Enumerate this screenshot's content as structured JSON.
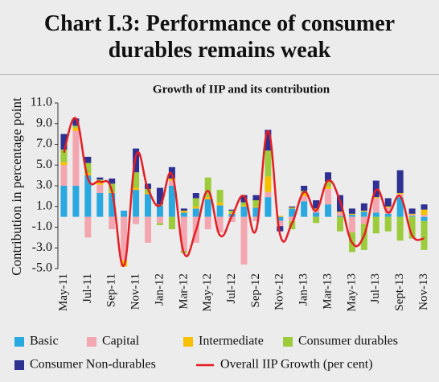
{
  "chart_data": {
    "type": "stacked-bar-line",
    "title": "Chart I.3: Performance of consumer durables remains weak",
    "subtitle": "Growth of IIP and its contribution",
    "y_label": "Contribution in percentage point",
    "categories": [
      "May-11",
      null,
      "Jul-11",
      null,
      "Sep-11",
      null,
      "Nov-11",
      null,
      "Jan-12",
      null,
      "Mar-12",
      null,
      "May-12",
      null,
      "Jul-12",
      null,
      "Sep-12",
      null,
      "Nov-12",
      null,
      "Jan-13",
      null,
      "Mar-13",
      null,
      "May-13",
      null,
      "Jul-13",
      null,
      "Sept-13",
      null,
      "Nov-13"
    ],
    "ylim": [
      -5,
      11
    ],
    "yticks": [
      {
        "value": -5,
        "label": "-5.0"
      },
      {
        "value": -3,
        "label": "-3.0"
      },
      {
        "value": -1,
        "label": "-1.0"
      },
      {
        "value": 1,
        "label": "1.0"
      },
      {
        "value": 3,
        "label": "3.0"
      },
      {
        "value": 5,
        "label": "5.0"
      },
      {
        "value": 7,
        "label": "7.0"
      },
      {
        "value": 9,
        "label": "9.0"
      },
      {
        "value": 11,
        "label": "11.0"
      }
    ],
    "grid": false,
    "series": [
      {
        "name": "Basic",
        "color": "#29a9e0",
        "type": "bar",
        "values": [
          3.0,
          3.0,
          4.0,
          2.3,
          2.3,
          0.6,
          2.6,
          2.2,
          1.1,
          3.0,
          0.4,
          0.8,
          1.7,
          1.1,
          0.3,
          1.0,
          0.9,
          1.9,
          -0.4,
          0.8,
          1.5,
          0.4,
          1.2,
          0.1,
          0.2,
          0.5,
          0.4,
          0.3,
          1.9,
          0.1,
          -0.4
        ]
      },
      {
        "name": "Capital",
        "color": "#f4a6b0",
        "type": "bar",
        "values": [
          2.0,
          5.3,
          -2.0,
          0.8,
          -1.2,
          -4.2,
          -0.7,
          -2.5,
          -0.6,
          0.5,
          -3.3,
          -2.5,
          -1.2,
          -1.5,
          -0.5,
          -4.6,
          -0.4,
          0.5,
          -0.5,
          -0.4,
          0.5,
          0.3,
          1.5,
          0.3,
          -1.5,
          -0.7,
          1.4,
          0.6,
          0.3,
          0.1,
          0.2
        ]
      },
      {
        "name": "Intermediate",
        "color": "#f6c000",
        "type": "bar",
        "values": [
          0.3,
          0.3,
          0.2,
          0.2,
          0.1,
          -0.6,
          0.2,
          0.1,
          0.1,
          0.2,
          0.2,
          0.2,
          0.2,
          0.3,
          0.1,
          0.1,
          0.1,
          1.5,
          0.1,
          0.1,
          0.3,
          0.1,
          0.2,
          0.1,
          0.1,
          0.1,
          0.1,
          0.1,
          0.1,
          0.1,
          0.5
        ]
      },
      {
        "name": "Consumer durables",
        "color": "#9ccb3b",
        "type": "bar",
        "values": [
          1.2,
          0.2,
          1.0,
          0.3,
          0.8,
          0.0,
          1.5,
          0.4,
          -0.2,
          -1.2,
          -0.2,
          0.8,
          1.9,
          1.2,
          0.2,
          0.3,
          0.6,
          2.5,
          0.0,
          -0.8,
          0.2,
          -0.6,
          0.5,
          -1.4,
          -1.9,
          -2.5,
          -1.6,
          -1.4,
          -2.3,
          -2.1,
          -2.8
        ]
      },
      {
        "name": "Consumer Non-durables",
        "color": "#2e3192",
        "type": "bar",
        "values": [
          1.5,
          0.7,
          0.6,
          0.2,
          0.5,
          0.0,
          2.3,
          0.5,
          1.6,
          1.1,
          0.2,
          0.5,
          0.0,
          0.0,
          0.1,
          0.7,
          0.5,
          2.0,
          -0.5,
          0.1,
          0.5,
          0.8,
          0.9,
          1.6,
          0.5,
          0.7,
          1.6,
          0.8,
          2.2,
          0.5,
          0.5
        ]
      },
      {
        "name": "Overall IIP Growth (per cent)",
        "color": "#e31e24",
        "type": "line",
        "values": [
          6.2,
          9.5,
          3.7,
          3.4,
          2.5,
          -4.7,
          5.9,
          2.7,
          1.1,
          4.1,
          -3.5,
          -1.3,
          2.5,
          -1.8,
          0.1,
          2.0,
          -1.3,
          8.3,
          -1.7,
          -0.6,
          2.4,
          0.6,
          3.5,
          1.5,
          -2.5,
          -1.8,
          2.6,
          0.4,
          2.0,
          -1.8,
          -2.1
        ]
      }
    ]
  }
}
